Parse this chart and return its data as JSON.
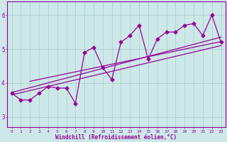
{
  "xlabel": "Windchill (Refroidissement éolien,°C)",
  "ylabel": "",
  "background_color": "#cce8e8",
  "line_color": "#990099",
  "xlim": [
    -0.5,
    23.5
  ],
  "ylim": [
    2.7,
    6.4
  ],
  "yticks": [
    3,
    4,
    5,
    6
  ],
  "xticks": [
    0,
    1,
    2,
    3,
    4,
    5,
    6,
    7,
    8,
    9,
    10,
    11,
    12,
    13,
    14,
    15,
    16,
    17,
    18,
    19,
    20,
    21,
    22,
    23
  ],
  "data_x": [
    0,
    1,
    2,
    3,
    4,
    5,
    6,
    7,
    8,
    9,
    10,
    11,
    12,
    13,
    14,
    15,
    16,
    17,
    18,
    19,
    20,
    21,
    22,
    23
  ],
  "data_y": [
    3.7,
    3.5,
    3.5,
    3.7,
    3.9,
    3.85,
    3.85,
    3.4,
    4.9,
    5.05,
    4.45,
    4.1,
    5.2,
    5.4,
    5.7,
    4.7,
    5.3,
    5.5,
    5.5,
    5.7,
    5.75,
    5.4,
    6.0,
    5.2
  ],
  "trend_lines": [
    {
      "x0": 0,
      "y0": 3.65,
      "x1": 23,
      "y1": 5.1
    },
    {
      "x0": 0,
      "y0": 3.72,
      "x1": 23,
      "y1": 5.35
    },
    {
      "x0": 2,
      "y0": 4.05,
      "x1": 23,
      "y1": 5.22
    }
  ],
  "marker": "D",
  "markersize": 2.5,
  "linewidth": 0.9,
  "grid_color": "#aacccc",
  "tick_fontsize": 4.5,
  "xlabel_fontsize": 5.5
}
